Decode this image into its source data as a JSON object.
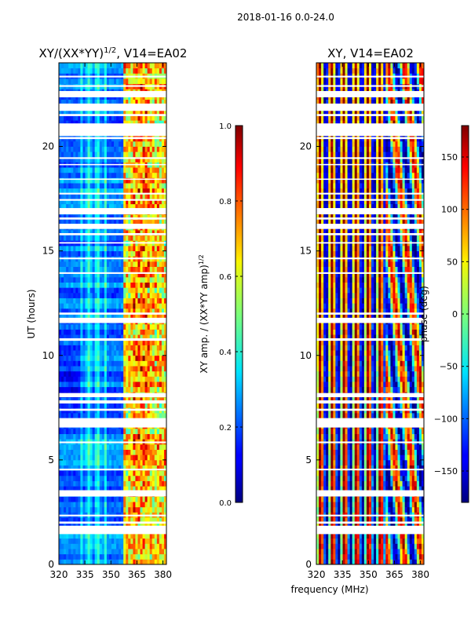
{
  "suptitle": "2018-01-16 0.0-24.0",
  "shared_xlabel": "frequency (MHz)",
  "colors": {
    "background": "#ffffff",
    "axis": "#000000",
    "gap": "#ffffff"
  },
  "chart_data": [
    {
      "type": "heatmap",
      "title": "XY/(XX*YY)",
      "title_superscript": "1/2",
      "title_suffix": ", V14=EA02",
      "xlabel": "",
      "ylabel": "UT (hours)",
      "xlim": [
        320,
        382
      ],
      "ylim": [
        0,
        24
      ],
      "xticks": [
        320,
        335,
        350,
        365,
        380
      ],
      "yticks": [
        0,
        5,
        10,
        15,
        20
      ],
      "colormap": "jet",
      "value_range": [
        0.0,
        1.0
      ],
      "colorbar": {
        "label": "XY amp. / (XX*YY amp)",
        "label_superscript": "1/2",
        "ticks": [
          "0.0",
          "0.2",
          "0.4",
          "0.6",
          "0.8",
          "1.0"
        ],
        "tick_values": [
          0.0,
          0.2,
          0.4,
          0.6,
          0.8,
          1.0
        ]
      }
    },
    {
      "type": "heatmap",
      "title": "XY, V14=EA02",
      "xlabel": "",
      "ylabel": "",
      "xlim": [
        320,
        382
      ],
      "ylim": [
        0,
        24
      ],
      "xticks": [
        320,
        335,
        350,
        365,
        380
      ],
      "yticks": [
        0,
        5,
        10,
        15,
        20
      ],
      "colormap": "jet",
      "value_range": [
        -180,
        180
      ],
      "colorbar": {
        "label": "phase (deg)",
        "ticks": [
          "−150",
          "−100",
          "−50",
          "0",
          "50",
          "100",
          "150"
        ],
        "tick_values": [
          -150,
          -100,
          -50,
          0,
          50,
          100,
          150
        ]
      }
    }
  ],
  "flagged_ut_ranges_hours": [
    [
      1.45,
      1.85
    ],
    [
      1.95,
      2.05
    ],
    [
      2.3,
      2.38
    ],
    [
      3.25,
      3.55
    ],
    [
      4.5,
      4.58
    ],
    [
      5.8,
      5.88
    ],
    [
      6.55,
      7.0
    ],
    [
      7.35,
      7.45
    ],
    [
      7.7,
      7.85
    ],
    [
      8.0,
      8.2
    ],
    [
      10.7,
      10.82
    ],
    [
      11.55,
      11.8
    ],
    [
      11.95,
      12.05
    ],
    [
      13.9,
      13.98
    ],
    [
      14.6,
      14.68
    ],
    [
      15.35,
      15.42
    ],
    [
      15.75,
      15.85
    ],
    [
      16.05,
      16.3
    ],
    [
      16.5,
      16.6
    ],
    [
      16.75,
      17.05
    ],
    [
      17.4,
      17.48
    ],
    [
      17.7,
      17.78
    ],
    [
      18.4,
      18.46
    ],
    [
      19.1,
      19.16
    ],
    [
      19.4,
      19.48
    ],
    [
      20.35,
      20.45
    ],
    [
      20.5,
      21.1
    ],
    [
      21.45,
      21.55
    ],
    [
      21.7,
      22.05
    ],
    [
      22.35,
      22.65
    ],
    [
      22.85,
      22.93
    ],
    [
      23.3,
      23.38
    ]
  ]
}
